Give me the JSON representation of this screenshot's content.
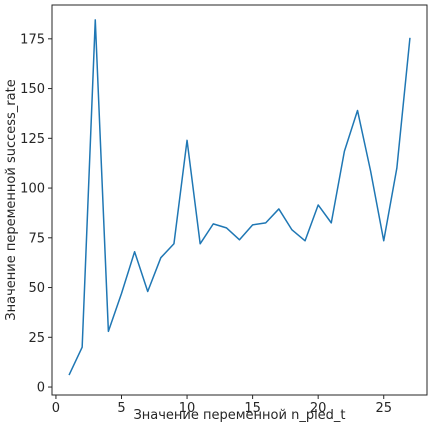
{
  "chart_data": {
    "type": "line",
    "xlabel": "Значение переменной n_pled_t",
    "ylabel": "Значение переменной success_rate",
    "xlim": [
      -0.3,
      28.3
    ],
    "ylim": [
      -4,
      192
    ],
    "x_ticks": [
      0,
      5,
      10,
      15,
      20,
      25
    ],
    "y_ticks": [
      0,
      25,
      50,
      75,
      100,
      125,
      150,
      175
    ],
    "grid": false,
    "line_color": "#1f77b4",
    "series": [
      {
        "x": [
          1,
          2,
          3,
          4,
          5,
          6,
          7,
          8,
          9,
          10,
          11,
          12,
          13,
          14,
          15,
          16,
          17,
          18,
          19,
          20,
          21,
          22,
          23,
          24,
          25,
          26,
          27
        ],
        "values": [
          6,
          20,
          184.5,
          28,
          47,
          68,
          48,
          65,
          72,
          124,
          72,
          82,
          80,
          74,
          81.5,
          82.5,
          89.5,
          79,
          73.5,
          91.5,
          82.5,
          118.5,
          139,
          108.5,
          73.5,
          110,
          175.5
        ]
      }
    ]
  }
}
